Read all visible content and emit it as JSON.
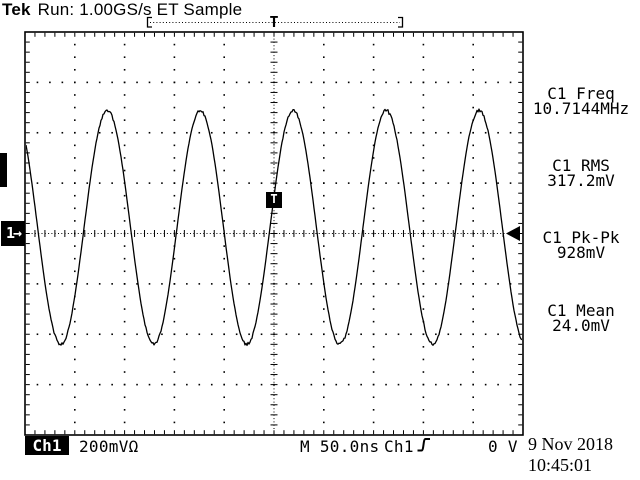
{
  "header": {
    "brand": "Tek",
    "status": "Run: 1.00GS/s ET Sample"
  },
  "acquisition_window": {
    "trigger_indicator": "T"
  },
  "graticule_markers": {
    "trigger_point_label": "T",
    "channel_position_label": "1→"
  },
  "measurements": [
    {
      "label": "C1 Freq",
      "value": "10.7144MHz"
    },
    {
      "label": "C1 RMS",
      "value": "317.2mV"
    },
    {
      "label": "C1 Pk-Pk",
      "value": "928mV"
    },
    {
      "label": "C1 Mean",
      "value": "24.0mV"
    }
  ],
  "status_bar": {
    "channel_badge": "Ch1",
    "vertical_scale": "200mVΩ",
    "timebase": "M 50.0ns",
    "trigger_source": "Ch1",
    "trigger_level": "0 V"
  },
  "datetime": {
    "date": "9 Nov 2018",
    "time": "10:45:01"
  },
  "chart_data": {
    "type": "line",
    "signal": "sine",
    "channel": "Ch1",
    "title": "Ch1 waveform",
    "x_unit": "ns",
    "y_unit": "mV",
    "time_per_div_ns": 50,
    "mV_per_div": 200,
    "h_divisions": 10,
    "v_divisions": 8,
    "frequency_MHz": 10.7144,
    "period_ns": 93.33,
    "pk_pk_mV": 928,
    "rms_mV": 317.2,
    "mean_mV": 24.0,
    "trigger_level_V": 0,
    "trigger_slope": "rising",
    "trigger_position": "center",
    "cycles_visible": 5.4
  }
}
